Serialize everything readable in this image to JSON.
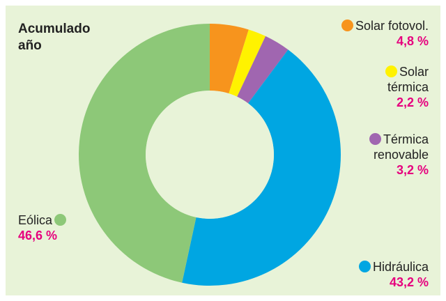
{
  "chart_data": {
    "type": "donut",
    "title": "Acumulado año",
    "categories": [
      "Solar fotovol.",
      "Solar térmica",
      "Térmica renovable",
      "Hidráulica",
      "Eólica"
    ],
    "values": [
      4.8,
      2.2,
      3.2,
      43.2,
      46.6
    ],
    "value_labels": [
      "4,8 %",
      "2,2 %",
      "3,2 %",
      "43,2 %",
      "46,6 %"
    ],
    "colors": [
      "#f7941d",
      "#fff200",
      "#a066b0",
      "#00a6e2",
      "#8dc878"
    ]
  }
}
